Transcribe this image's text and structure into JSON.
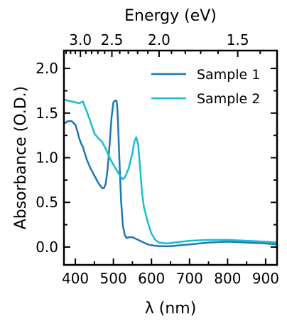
{
  "chart_data": {
    "type": "line",
    "xlabel": "λ (nm)",
    "ylabel": "Absorbance (O.D.)",
    "top_xlabel": "Energy (eV)",
    "xlim": [
      370,
      930
    ],
    "ylim": [
      -0.2,
      2.2
    ],
    "x_ticks": [
      400,
      500,
      600,
      700,
      800,
      900
    ],
    "x_tick_labels": [
      "400",
      "500",
      "600",
      "700",
      "800",
      "900"
    ],
    "y_ticks": [
      0.0,
      0.5,
      1.0,
      1.5,
      2.0
    ],
    "y_tick_labels": [
      "0.0",
      "0.5",
      "1.0",
      "1.5",
      "2.0"
    ],
    "top_ticks_ev": [
      3.0,
      2.5,
      2.0,
      1.5
    ],
    "top_tick_labels": [
      "3.0",
      "2.5",
      "2.0",
      "1.5"
    ],
    "grid": false,
    "legend_position": "top-right",
    "series": [
      {
        "name": "Sample 1",
        "color": "#1f77b4",
        "x": [
          370,
          380,
          390,
          400,
          405,
          410,
          415,
          420,
          430,
          440,
          450,
          460,
          470,
          475,
          480,
          485,
          490,
          495,
          500,
          505,
          508,
          510,
          512,
          515,
          520,
          525,
          530,
          535,
          540,
          550,
          560,
          570,
          580,
          590,
          600,
          620,
          650,
          700,
          750,
          800,
          850,
          900,
          930
        ],
        "y": [
          1.38,
          1.41,
          1.41,
          1.37,
          1.3,
          1.22,
          1.16,
          1.12,
          0.98,
          0.88,
          0.8,
          0.72,
          0.66,
          0.66,
          0.71,
          0.88,
          1.15,
          1.45,
          1.62,
          1.64,
          1.64,
          1.58,
          1.4,
          1.05,
          0.52,
          0.24,
          0.13,
          0.1,
          0.11,
          0.11,
          0.09,
          0.07,
          0.05,
          0.03,
          0.02,
          0.01,
          0.01,
          0.03,
          0.05,
          0.06,
          0.05,
          0.04,
          0.03
        ]
      },
      {
        "name": "Sample 2",
        "color": "#17becf",
        "x": [
          370,
          390,
          410,
          420,
          425,
          430,
          440,
          450,
          460,
          470,
          480,
          490,
          500,
          510,
          520,
          525,
          530,
          540,
          550,
          555,
          560,
          565,
          570,
          575,
          580,
          590,
          600,
          610,
          620,
          640,
          660,
          700,
          750,
          800,
          850,
          900,
          930
        ],
        "y": [
          1.65,
          1.63,
          1.61,
          1.63,
          1.57,
          1.52,
          1.4,
          1.27,
          1.22,
          1.18,
          1.1,
          1.0,
          0.92,
          0.85,
          0.78,
          0.76,
          0.78,
          0.88,
          1.05,
          1.18,
          1.23,
          1.15,
          0.9,
          0.62,
          0.45,
          0.28,
          0.15,
          0.08,
          0.05,
          0.04,
          0.05,
          0.07,
          0.08,
          0.08,
          0.07,
          0.06,
          0.05
        ]
      }
    ]
  }
}
